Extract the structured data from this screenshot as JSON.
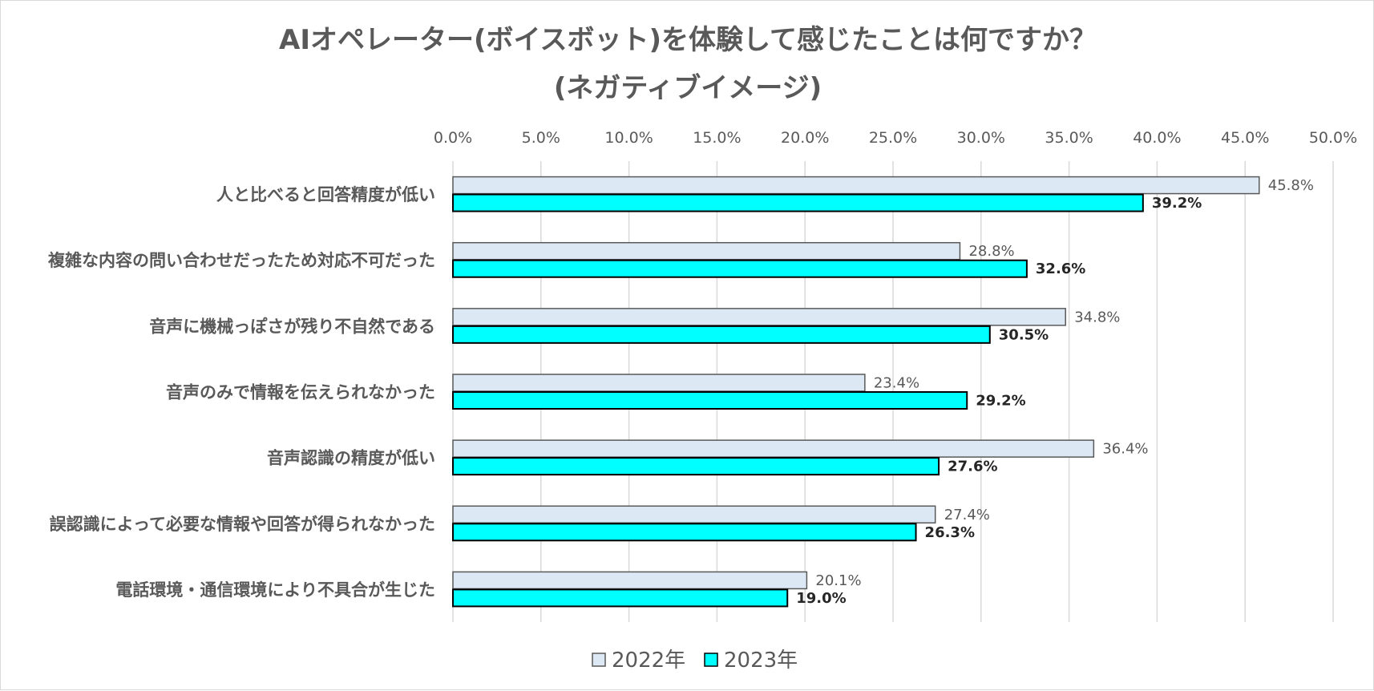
{
  "chart_data": {
    "type": "bar",
    "orientation": "horizontal",
    "title_lines": [
      "AIオペレーター(ボイスボット)を体験して感じたことは何ですか？",
      "(ネガティブイメージ)"
    ],
    "categories": [
      "人と比べると回答精度が低い",
      "複雑な内容の問い合わせだったため対応不可だった",
      "音声に機械っぽさが残り不自然である",
      "音声のみで情報を伝えられなかった",
      "音声認識の精度が低い",
      "誤認識によって必要な情報や回答が得られなかった",
      "電話環境・通信環境により不具合が生じた"
    ],
    "series": [
      {
        "name": "2022年",
        "values": [
          45.8,
          28.8,
          34.8,
          23.4,
          36.4,
          27.4,
          20.1
        ],
        "labels": [
          "45.8%",
          "28.8%",
          "34.8%",
          "23.4%",
          "36.4%",
          "27.4%",
          "20.1%"
        ],
        "color": "#dde8f5",
        "stroke": "#595959"
      },
      {
        "name": "2023年",
        "values": [
          39.2,
          32.6,
          30.5,
          29.2,
          27.6,
          26.3,
          19.0
        ],
        "labels": [
          "39.2%",
          "32.6%",
          "30.5%",
          "29.2%",
          "27.6%",
          "26.3%",
          "19.0%"
        ],
        "color": "#00ffff",
        "stroke": "#000000"
      }
    ],
    "xlim": [
      0,
      50
    ],
    "xticks": [
      0,
      5,
      10,
      15,
      20,
      25,
      30,
      35,
      40,
      45,
      50
    ],
    "xtick_labels": [
      "0.0%",
      "5.0%",
      "10.0%",
      "15.0%",
      "20.0%",
      "25.0%",
      "30.0%",
      "35.0%",
      "40.0%",
      "45.0%",
      "50.0%"
    ],
    "x_axis_position": "top",
    "grid": true,
    "legend_position": "bottom"
  }
}
